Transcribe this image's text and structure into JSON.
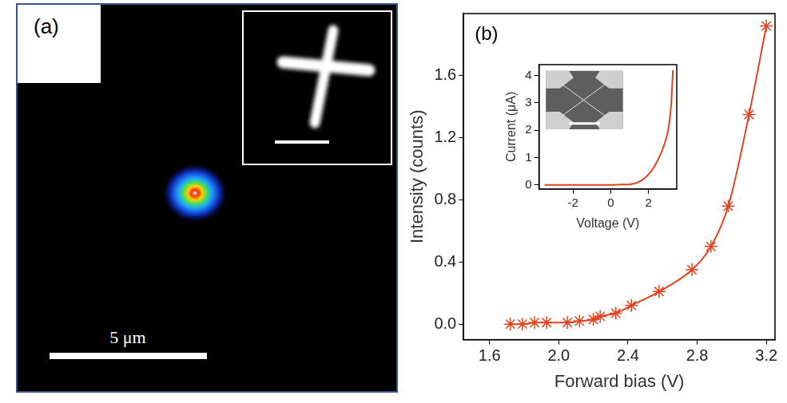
{
  "panel_a": {
    "label": "(a)",
    "scale_bar": "5 μm"
  },
  "chart_data": [
    {
      "type": "line",
      "panel_label": "(b)",
      "x_label": "Forward bias (V)",
      "y_label": "Intensity (counts)",
      "x": [
        1.72,
        1.79,
        1.86,
        1.93,
        2.05,
        2.12,
        2.2,
        2.24,
        2.33,
        2.42,
        2.58,
        2.77,
        2.88,
        2.98,
        3.1,
        3.2
      ],
      "values": [
        0,
        0,
        0.01,
        0.01,
        0.01,
        0.02,
        0.03,
        0.05,
        0.07,
        0.12,
        0.21,
        0.35,
        0.5,
        0.76,
        1.35,
        1.92
      ],
      "color": "#e2431f",
      "marker": "star",
      "xlim": [
        1.45,
        3.25
      ],
      "xticks": [
        1.6,
        {
          "value": 2,
          "label": "2.0"
        },
        2.4,
        2.8,
        3.2
      ],
      "ylim": [
        -0.1,
        2.0
      ],
      "yticks": [
        {
          "value": 0,
          "label": "0.0"
        },
        0.4,
        0.8,
        1.2,
        1.6
      ],
      "grid": false
    },
    {
      "type": "line",
      "x_label": "Voltage (V)",
      "y_label": "Current (μA)",
      "x": [
        -3.5,
        -3,
        -2.5,
        -2,
        -1.5,
        -1,
        -0.5,
        0,
        0.5,
        1,
        1.2,
        1.4,
        1.6,
        1.8,
        2,
        2.2,
        2.4,
        2.6,
        2.8,
        3,
        3.1,
        3.2,
        3.3
      ],
      "values": [
        0,
        0,
        0,
        0,
        0,
        0,
        0,
        0,
        0.01,
        0.02,
        0.04,
        0.08,
        0.15,
        0.25,
        0.38,
        0.55,
        0.78,
        1.05,
        1.4,
        1.85,
        2.25,
        2.9,
        4.2
      ],
      "color": "#e2431f",
      "xlim": [
        -3.8,
        3.5
      ],
      "xticks": [
        -2,
        0,
        2
      ],
      "ylim": [
        -0.15,
        4.4
      ],
      "yticks": [
        0,
        1,
        2,
        3,
        4
      ],
      "grid": false
    }
  ]
}
